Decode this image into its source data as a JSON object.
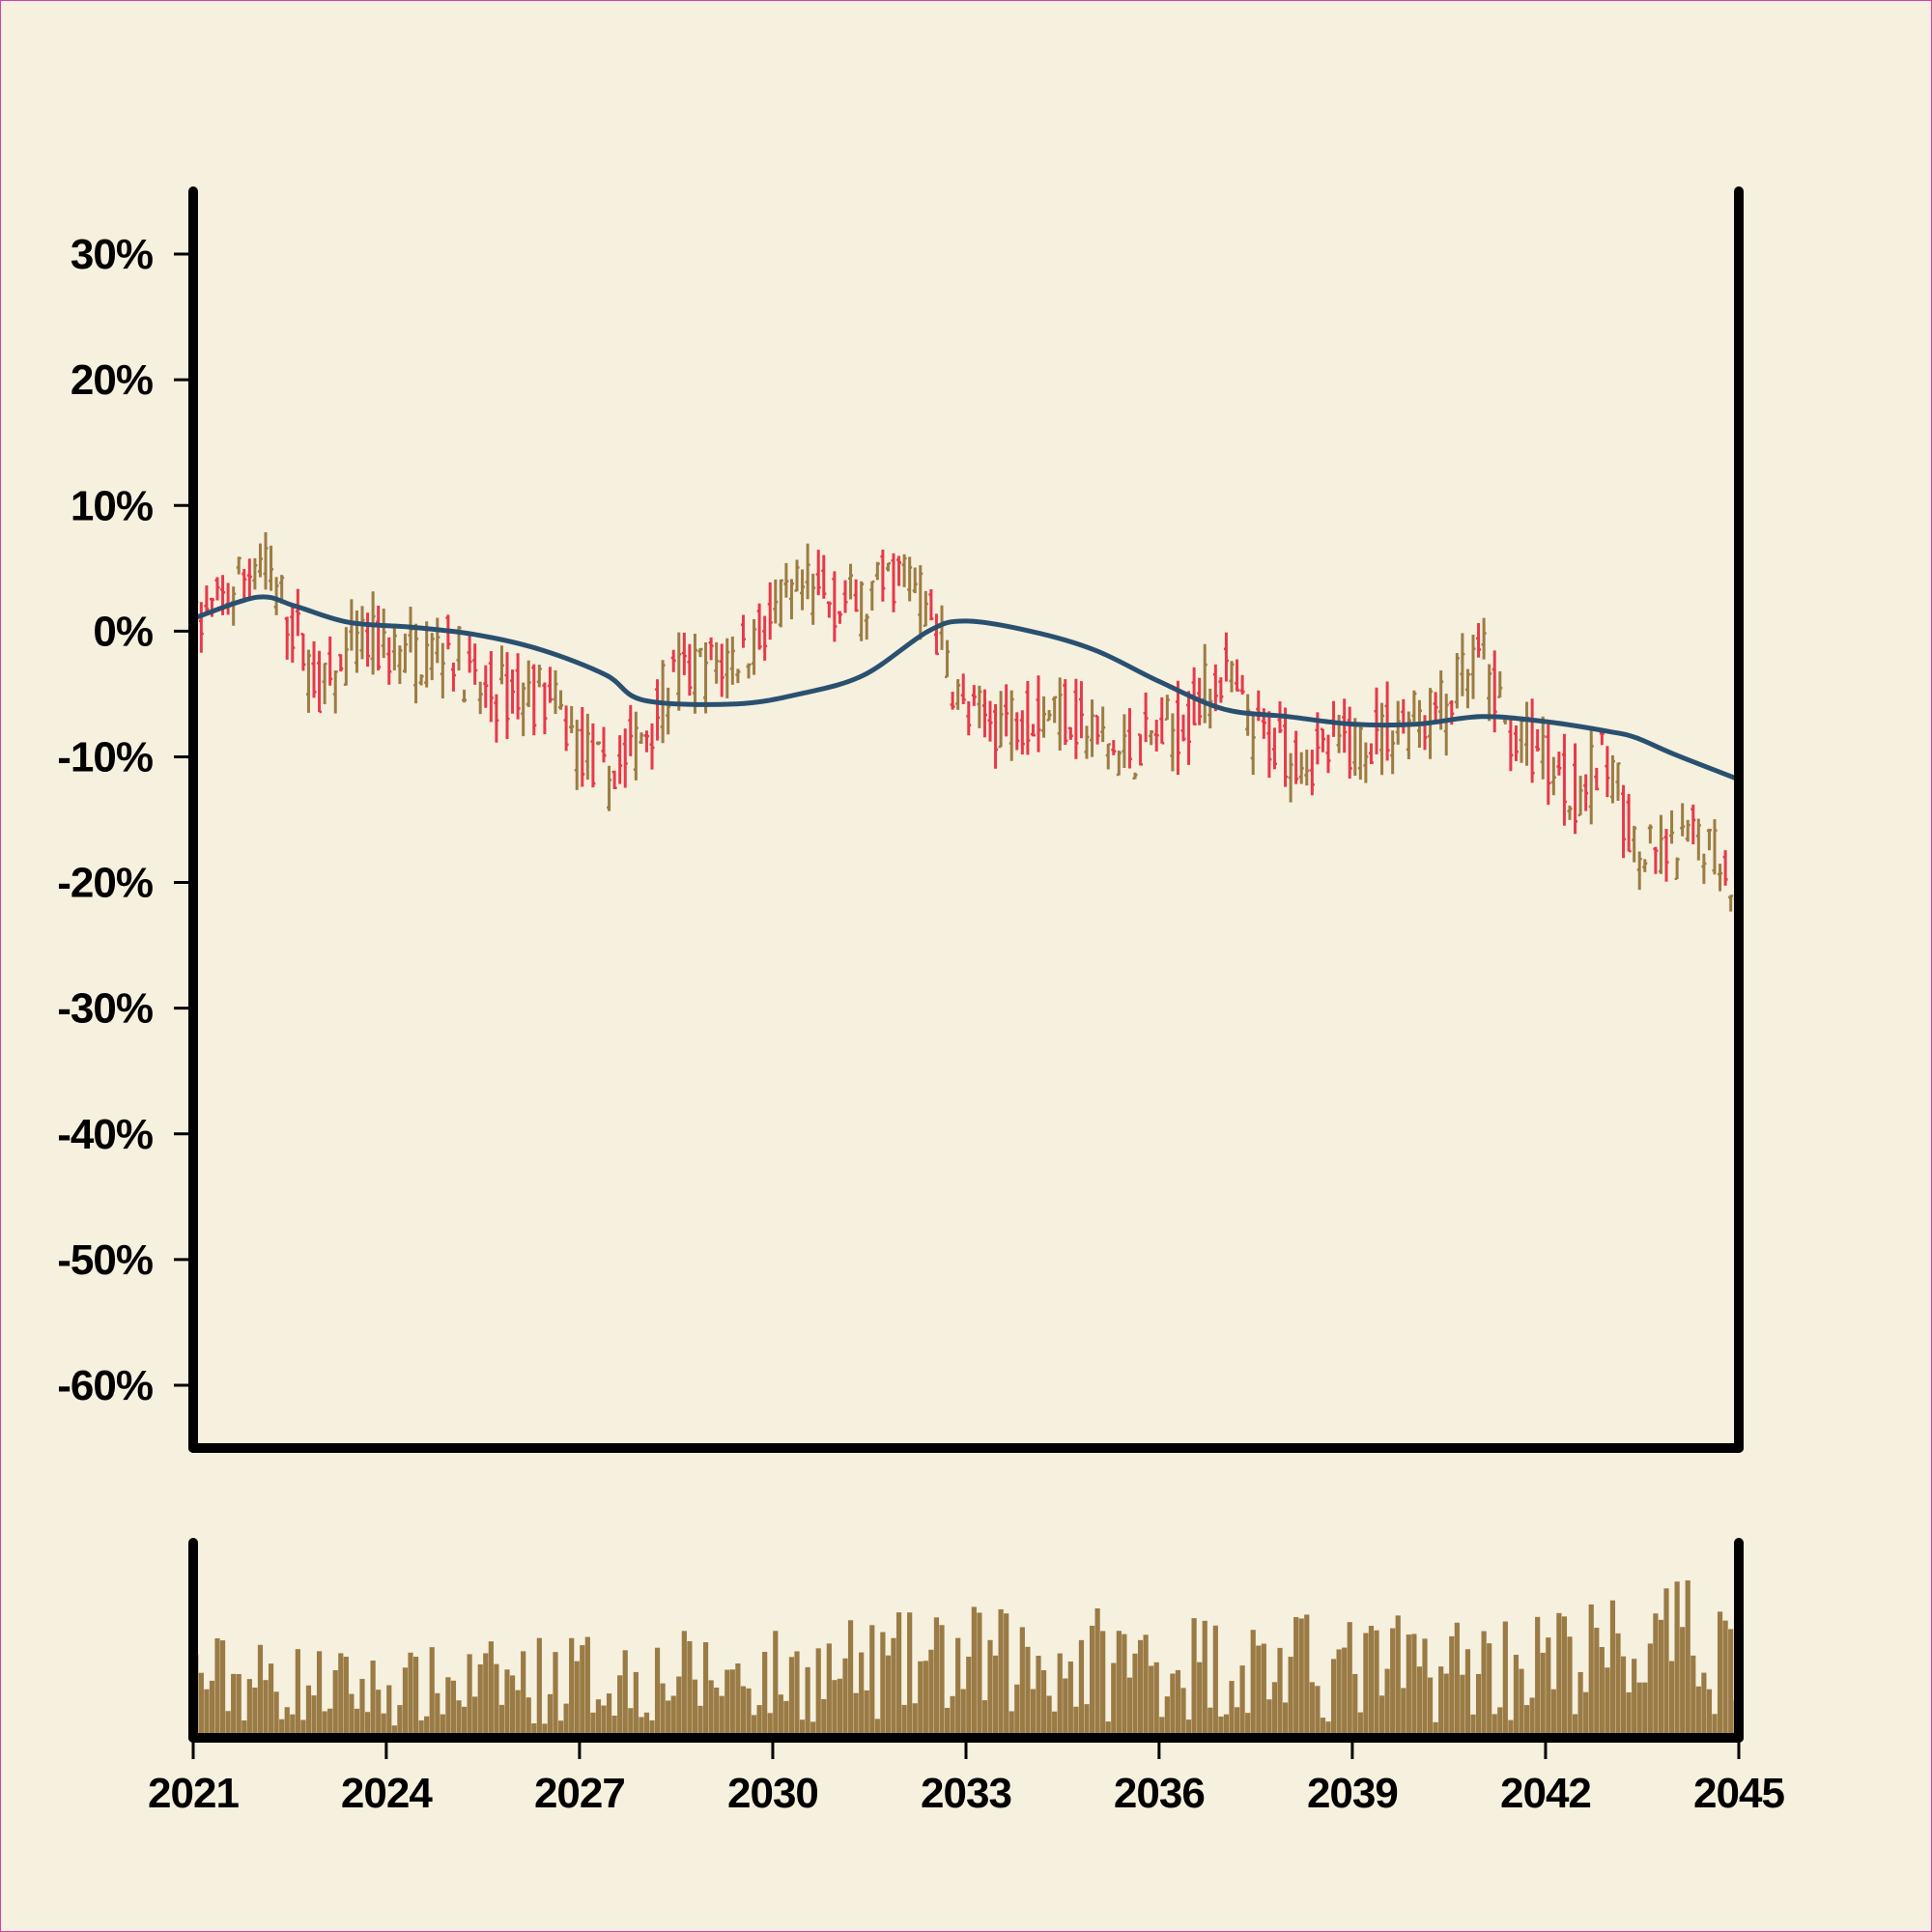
{
  "colors": {
    "background": "#f6f0df",
    "axis": "#000000",
    "ohlc_up": "#9c7c44",
    "ohlc_down": "#e8394a",
    "moving_average": "#2a5070",
    "volume": "#9a7b45"
  },
  "chart_data": {
    "type": "ohlc",
    "title": "",
    "xlabel": "",
    "ylabel": "",
    "x_range": [
      "2021-01-01",
      "2045-01-01"
    ],
    "ylim": [
      -0.65,
      0.35
    ],
    "y_ticks": [
      0.3,
      0.2,
      0.1,
      0.0,
      -0.1,
      -0.2,
      -0.3,
      -0.4,
      -0.5,
      -0.6
    ],
    "y_tick_labels": [
      "30%",
      "20%",
      "10%",
      "0%",
      "-10%",
      "-20%",
      "-30%",
      "-40%",
      "-50%",
      "-60%"
    ],
    "x_ticks": [
      "2021-01-01",
      "2024-01-01",
      "2027-01-01",
      "2030-01-01",
      "2033-01-01",
      "2036-01-01",
      "2039-01-01",
      "2042-01-01",
      "2045-01-01"
    ],
    "x_tick_labels": [
      "2021",
      "2024",
      "2027",
      "2030",
      "2033",
      "2036",
      "2039",
      "2042",
      "2045"
    ],
    "period": "monthly",
    "grid": false,
    "price_path": [
      {
        "date": "2021-01-01",
        "value": 0.0
      },
      {
        "date": "2021-08-01",
        "value": 0.03
      },
      {
        "date": "2022-01-01",
        "value": 0.06
      },
      {
        "date": "2022-06-01",
        "value": 0.02
      },
      {
        "date": "2023-01-01",
        "value": -0.05
      },
      {
        "date": "2023-08-01",
        "value": -0.01
      },
      {
        "date": "2024-06-01",
        "value": -0.02
      },
      {
        "date": "2025-01-01",
        "value": -0.01
      },
      {
        "date": "2025-06-01",
        "value": -0.05
      },
      {
        "date": "2026-06-01",
        "value": -0.05
      },
      {
        "date": "2027-06-01",
        "value": -0.12
      },
      {
        "date": "2028-01-01",
        "value": -0.08
      },
      {
        "date": "2028-06-01",
        "value": -0.04
      },
      {
        "date": "2029-06-01",
        "value": -0.02
      },
      {
        "date": "2030-06-01",
        "value": 0.03
      },
      {
        "date": "2031-06-01",
        "value": 0.02
      },
      {
        "date": "2032-01-01",
        "value": 0.05
      },
      {
        "date": "2032-06-01",
        "value": 0.02
      },
      {
        "date": "2033-01-01",
        "value": -0.07
      },
      {
        "date": "2033-06-01",
        "value": -0.07
      },
      {
        "date": "2034-06-01",
        "value": -0.06
      },
      {
        "date": "2035-06-01",
        "value": -0.1
      },
      {
        "date": "2036-06-01",
        "value": -0.07
      },
      {
        "date": "2037-01-01",
        "value": -0.03
      },
      {
        "date": "2037-06-01",
        "value": -0.08
      },
      {
        "date": "2038-06-01",
        "value": -0.1
      },
      {
        "date": "2039-06-01",
        "value": -0.08
      },
      {
        "date": "2040-06-01",
        "value": -0.06
      },
      {
        "date": "2041-01-01",
        "value": -0.02
      },
      {
        "date": "2041-06-01",
        "value": -0.08
      },
      {
        "date": "2042-01-01",
        "value": -0.1
      },
      {
        "date": "2042-06-01",
        "value": -0.13
      },
      {
        "date": "2043-01-01",
        "value": -0.1
      },
      {
        "date": "2043-06-01",
        "value": -0.18
      },
      {
        "date": "2044-01-01",
        "value": -0.18
      },
      {
        "date": "2044-06-01",
        "value": -0.16
      },
      {
        "date": "2045-01-01",
        "value": -0.2
      }
    ],
    "moving_average": [
      {
        "date": "2021-01-01",
        "value": 0.01
      },
      {
        "date": "2022-01-01",
        "value": 0.027
      },
      {
        "date": "2022-08-01",
        "value": 0.02
      },
      {
        "date": "2023-06-01",
        "value": 0.007
      },
      {
        "date": "2024-06-01",
        "value": 0.003
      },
      {
        "date": "2025-06-01",
        "value": -0.003
      },
      {
        "date": "2026-06-01",
        "value": -0.015
      },
      {
        "date": "2027-06-01",
        "value": -0.035
      },
      {
        "date": "2028-01-01",
        "value": -0.055
      },
      {
        "date": "2029-06-01",
        "value": -0.058
      },
      {
        "date": "2030-06-01",
        "value": -0.05
      },
      {
        "date": "2031-06-01",
        "value": -0.035
      },
      {
        "date": "2032-06-01",
        "value": 0.0
      },
      {
        "date": "2033-01-01",
        "value": 0.008
      },
      {
        "date": "2034-01-01",
        "value": 0.0
      },
      {
        "date": "2035-01-01",
        "value": -0.015
      },
      {
        "date": "2036-01-01",
        "value": -0.04
      },
      {
        "date": "2037-01-01",
        "value": -0.062
      },
      {
        "date": "2038-01-01",
        "value": -0.068
      },
      {
        "date": "2039-01-01",
        "value": -0.074
      },
      {
        "date": "2040-01-01",
        "value": -0.074
      },
      {
        "date": "2041-01-01",
        "value": -0.068
      },
      {
        "date": "2042-01-01",
        "value": -0.072
      },
      {
        "date": "2043-01-01",
        "value": -0.08
      },
      {
        "date": "2043-06-01",
        "value": -0.085
      },
      {
        "date": "2044-01-01",
        "value": -0.098
      },
      {
        "date": "2045-01-01",
        "value": -0.118
      }
    ],
    "volume_profile": [
      {
        "date": "2021-01-01",
        "value": 0.45
      },
      {
        "date": "2024-01-01",
        "value": 0.35
      },
      {
        "date": "2027-01-01",
        "value": 0.45
      },
      {
        "date": "2030-01-01",
        "value": 0.45
      },
      {
        "date": "2033-01-01",
        "value": 0.55
      },
      {
        "date": "2036-01-01",
        "value": 0.55
      },
      {
        "date": "2039-01-01",
        "value": 0.5
      },
      {
        "date": "2042-01-01",
        "value": 0.55
      },
      {
        "date": "2045-01-01",
        "value": 0.7
      }
    ]
  }
}
